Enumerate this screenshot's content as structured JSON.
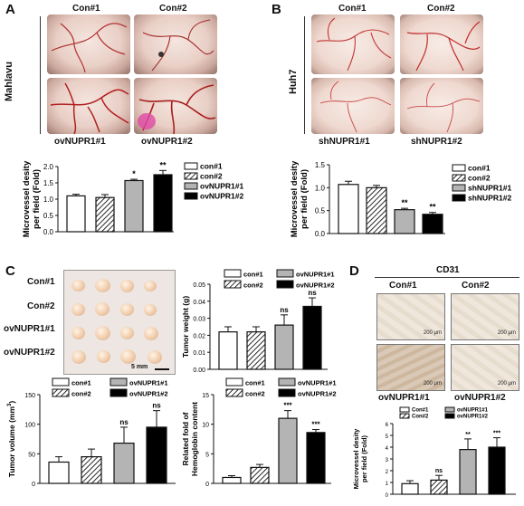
{
  "panels": {
    "A": {
      "letter": "A",
      "top_left": "Con#1",
      "top_right": "Con#2",
      "bottom_left": "ovNUPR1#1",
      "bottom_right": "ovNUPR1#2",
      "side": "Mahlavu"
    },
    "B": {
      "letter": "B",
      "top_left": "Con#1",
      "top_right": "Con#2",
      "bottom_left": "shNUPR1#1",
      "bottom_right": "shNUPR1#2",
      "side": "Huh7"
    },
    "C": {
      "letter": "C",
      "rows": [
        "Con#1",
        "Con#2",
        "ovNUPR1#1",
        "ovNUPR1#2"
      ],
      "scale": "5 mm"
    },
    "D": {
      "letter": "D",
      "header": "CD31",
      "top_left": "Con#1",
      "top_right": "Con#2",
      "bottom_left": "ovNUPR1#1",
      "bottom_right": "ovNUPR1#2",
      "scale": "200 μm"
    }
  },
  "colors": {
    "con1": "#ffffff",
    "con2": "hatch",
    "ov1": "#b4b4b4",
    "ov2": "#000000"
  },
  "chart_data": [
    {
      "id": "A",
      "type": "bar",
      "categories": [
        "con#1",
        "con#2",
        "ovNUPR1#1",
        "ovNUPR1#2"
      ],
      "values": [
        1.1,
        1.05,
        1.57,
        1.75
      ],
      "errors": [
        0.05,
        0.09,
        0.04,
        0.13
      ],
      "sig": [
        "",
        "",
        "*",
        "**"
      ],
      "ylabel": "Microvessel desity\nper field (Fold)",
      "ylim": [
        0,
        2.0
      ],
      "yticks": [
        "0.0",
        "0.5",
        "1.0",
        "1.5",
        "2.0"
      ],
      "legend": [
        "con#1",
        "con#2",
        "ovNUPR1#1",
        "ovNUPR1#2"
      ],
      "legend_position": "right"
    },
    {
      "id": "B",
      "type": "bar",
      "categories": [
        "con#1",
        "con#2",
        "shNUPR1#1",
        "shNUPR1#2"
      ],
      "values": [
        1.07,
        1.0,
        0.52,
        0.42
      ],
      "errors": [
        0.07,
        0.05,
        0.03,
        0.04
      ],
      "sig": [
        "",
        "",
        "**",
        "**"
      ],
      "ylabel": "Microvessel desity\nper field (Fold)",
      "ylim": [
        0,
        1.5
      ],
      "yticks": [
        "0.0",
        "0.5",
        "1.0",
        "1.5"
      ],
      "legend": [
        "con#1",
        "con#2",
        "shNUPR1#1",
        "shNUPR1#2"
      ],
      "legend_position": "right"
    },
    {
      "id": "C-weight",
      "type": "bar",
      "categories": [
        "con#1",
        "con#2",
        "ovNUPR1#1",
        "ovNUPR1#2"
      ],
      "values": [
        0.022,
        0.022,
        0.026,
        0.037
      ],
      "errors": [
        0.003,
        0.003,
        0.006,
        0.005
      ],
      "sig": [
        "",
        "",
        "ns",
        "ns"
      ],
      "ylabel": "Tumor weight (g)",
      "ylim": [
        0,
        0.05
      ],
      "yticks": [
        "0.00",
        "0.01",
        "0.02",
        "0.03",
        "0.04",
        "0.05"
      ],
      "legend": [
        "con#1",
        "ovNUPR1#1",
        "con#2",
        "ovNUPR1#2"
      ],
      "legend_position": "top"
    },
    {
      "id": "C-volume",
      "type": "bar",
      "categories": [
        "con#1",
        "con#2",
        "ovNUPR1#1",
        "ovNUPR1#2"
      ],
      "values": [
        36,
        45,
        68,
        95
      ],
      "errors": [
        9,
        13,
        27,
        28
      ],
      "sig": [
        "",
        "",
        "ns",
        "ns"
      ],
      "ylabel": "Tumor volume (mm",
      "ylabel_sup": "3",
      "ylabel_end": ")",
      "ylim": [
        0,
        150
      ],
      "yticks": [
        "0",
        "50",
        "100",
        "150"
      ],
      "legend": [
        "con#1",
        "ovNUPR1#1",
        "con#2",
        "ovNUPR1#2"
      ],
      "legend_position": "top"
    },
    {
      "id": "C-hemoglobin",
      "type": "bar",
      "categories": [
        "con#1",
        "con#2",
        "ovNUPR1#1",
        "ovNUPR1#2"
      ],
      "values": [
        1.0,
        2.7,
        11.0,
        8.6
      ],
      "errors": [
        0.3,
        0.5,
        1.3,
        0.5
      ],
      "sig": [
        "",
        "",
        "***",
        "***"
      ],
      "ylabel": "Related fold of\nHemoglobin content",
      "ylim": [
        0,
        15
      ],
      "yticks": [
        "0",
        "5",
        "10",
        "15"
      ],
      "legend": [
        "con#1",
        "ovNUPR1#1",
        "con#2",
        "ovNUPR1#2"
      ],
      "legend_position": "top"
    },
    {
      "id": "D",
      "type": "bar",
      "categories": [
        "Con#1",
        "Con#2",
        "ovNUPR1#1",
        "ovNUPR1#2"
      ],
      "values": [
        0.9,
        1.2,
        3.8,
        4.0
      ],
      "errors": [
        0.25,
        0.4,
        0.9,
        0.8
      ],
      "sig": [
        "",
        "ns",
        "**",
        "***"
      ],
      "ylabel": "Microvessel desity\nper field (Fold)",
      "ylim": [
        0,
        6
      ],
      "yticks": [
        "0",
        "1",
        "2",
        "3",
        "4",
        "5",
        "6"
      ],
      "legend": [
        "Con#1",
        "ovNUPR1#1",
        "Con#2",
        "ovNUPR1#2"
      ],
      "legend_position": "top"
    }
  ]
}
